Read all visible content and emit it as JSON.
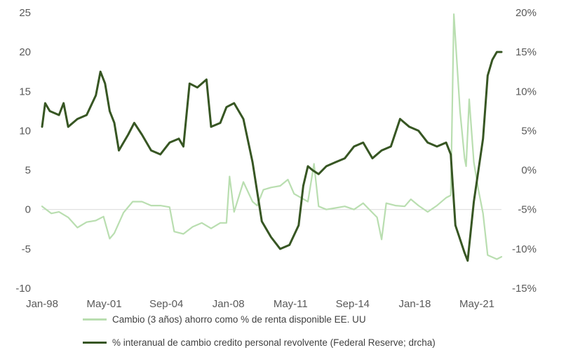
{
  "chart_data": {
    "type": "line",
    "x_tick_labels": [
      "Jan-98",
      "May-01",
      "Sep-04",
      "Jan-08",
      "May-11",
      "Sep-14",
      "Jan-18",
      "May-21"
    ],
    "y_left": {
      "ticks": [
        "25",
        "20",
        "15",
        "10",
        "5",
        "0",
        "-5",
        "-10"
      ],
      "range": [
        -10,
        25
      ]
    },
    "y_right": {
      "ticks": [
        "20%",
        "15%",
        "10%",
        "5%",
        "0%",
        "-5%",
        "-10%",
        "-15%"
      ],
      "range": [
        -15,
        20
      ]
    },
    "grid": false,
    "zero_line": true,
    "legend_position": "bottom",
    "series": [
      {
        "name": "Cambio (3 años) ahorro como % de renta disponible EE. UU",
        "axis": "left",
        "color": "#b9deb0",
        "points": [
          [
            "1998-01",
            0.4
          ],
          [
            "1998-07",
            -0.5
          ],
          [
            "1998-12",
            -0.3
          ],
          [
            "1999-06",
            -1.0
          ],
          [
            "1999-12",
            -2.3
          ],
          [
            "2000-06",
            -1.6
          ],
          [
            "2000-12",
            -1.4
          ],
          [
            "2001-05",
            -0.9
          ],
          [
            "2001-09",
            -3.7
          ],
          [
            "2001-12",
            -3.0
          ],
          [
            "2002-06",
            -0.4
          ],
          [
            "2002-12",
            1.0
          ],
          [
            "2003-06",
            1.0
          ],
          [
            "2003-12",
            0.5
          ],
          [
            "2004-06",
            0.5
          ],
          [
            "2004-12",
            0.3
          ],
          [
            "2005-03",
            -2.8
          ],
          [
            "2005-09",
            -3.1
          ],
          [
            "2006-03",
            -2.2
          ],
          [
            "2006-09",
            -1.7
          ],
          [
            "2007-03",
            -2.4
          ],
          [
            "2007-09",
            -1.7
          ],
          [
            "2008-01",
            -1.7
          ],
          [
            "2008-03",
            4.2
          ],
          [
            "2008-06",
            -0.3
          ],
          [
            "2008-12",
            3.5
          ],
          [
            "2009-06",
            1.0
          ],
          [
            "2009-09",
            0.5
          ],
          [
            "2010-01",
            2.5
          ],
          [
            "2010-06",
            2.8
          ],
          [
            "2010-12",
            3.0
          ],
          [
            "2011-05",
            3.8
          ],
          [
            "2011-09",
            2.0
          ],
          [
            "2012-06",
            1.0
          ],
          [
            "2012-10",
            5.8
          ],
          [
            "2013-01",
            0.4
          ],
          [
            "2013-06",
            0.0
          ],
          [
            "2013-12",
            0.2
          ],
          [
            "2014-06",
            0.4
          ],
          [
            "2014-12",
            0.0
          ],
          [
            "2015-06",
            0.8
          ],
          [
            "2015-09",
            0.2
          ],
          [
            "2016-03",
            -1.0
          ],
          [
            "2016-06",
            -3.8
          ],
          [
            "2016-09",
            0.8
          ],
          [
            "2017-03",
            0.5
          ],
          [
            "2017-09",
            0.4
          ],
          [
            "2018-01",
            1.3
          ],
          [
            "2018-06",
            0.5
          ],
          [
            "2018-12",
            -0.3
          ],
          [
            "2019-06",
            0.5
          ],
          [
            "2019-12",
            1.5
          ],
          [
            "2020-03",
            1.8
          ],
          [
            "2020-05",
            24.8
          ],
          [
            "2020-09",
            12.5
          ],
          [
            "2020-12",
            6.5
          ],
          [
            "2021-01",
            5.5
          ],
          [
            "2021-03",
            14.0
          ],
          [
            "2021-06",
            6.0
          ],
          [
            "2021-09",
            2.5
          ],
          [
            "2021-12",
            -0.5
          ],
          [
            "2022-03",
            -5.8
          ],
          [
            "2022-09",
            -6.3
          ],
          [
            "2022-12",
            -6.0
          ]
        ]
      },
      {
        "name": "% interanual de cambio credito personal revolvente (Federal Reserve; drcha)",
        "axis": "right",
        "color": "#375623",
        "points": [
          [
            "1998-01",
            5.5
          ],
          [
            "1998-03",
            8.5
          ],
          [
            "1998-06",
            7.5
          ],
          [
            "1998-12",
            7.0
          ],
          [
            "1999-03",
            8.5
          ],
          [
            "1999-06",
            5.5
          ],
          [
            "1999-12",
            6.5
          ],
          [
            "2000-06",
            7.0
          ],
          [
            "2000-12",
            9.5
          ],
          [
            "2001-03",
            12.5
          ],
          [
            "2001-06",
            11.0
          ],
          [
            "2001-09",
            7.5
          ],
          [
            "2001-12",
            6.0
          ],
          [
            "2002-03",
            2.5
          ],
          [
            "2002-09",
            4.5
          ],
          [
            "2003-01",
            6.0
          ],
          [
            "2003-06",
            4.5
          ],
          [
            "2003-12",
            2.5
          ],
          [
            "2004-06",
            2.0
          ],
          [
            "2004-12",
            3.5
          ],
          [
            "2005-06",
            4.0
          ],
          [
            "2005-09",
            3.0
          ],
          [
            "2006-01",
            11.0
          ],
          [
            "2006-06",
            10.5
          ],
          [
            "2006-12",
            11.5
          ],
          [
            "2007-03",
            5.5
          ],
          [
            "2007-09",
            6.0
          ],
          [
            "2008-01",
            8.0
          ],
          [
            "2008-06",
            8.5
          ],
          [
            "2008-12",
            6.5
          ],
          [
            "2009-06",
            1.0
          ],
          [
            "2009-12",
            -6.5
          ],
          [
            "2010-06",
            -8.5
          ],
          [
            "2010-12",
            -10.0
          ],
          [
            "2011-06",
            -9.5
          ],
          [
            "2011-12",
            -7.0
          ],
          [
            "2012-03",
            -2.0
          ],
          [
            "2012-06",
            0.5
          ],
          [
            "2012-09",
            0.0
          ],
          [
            "2013-01",
            -0.5
          ],
          [
            "2013-06",
            0.5
          ],
          [
            "2013-12",
            1.0
          ],
          [
            "2014-06",
            1.5
          ],
          [
            "2014-12",
            3.0
          ],
          [
            "2015-06",
            3.5
          ],
          [
            "2015-12",
            1.5
          ],
          [
            "2016-06",
            2.5
          ],
          [
            "2016-12",
            3.0
          ],
          [
            "2017-06",
            6.5
          ],
          [
            "2017-12",
            5.5
          ],
          [
            "2018-06",
            5.0
          ],
          [
            "2018-12",
            3.5
          ],
          [
            "2019-06",
            3.0
          ],
          [
            "2019-12",
            3.5
          ],
          [
            "2020-03",
            2.0
          ],
          [
            "2020-06",
            -7.0
          ],
          [
            "2020-12",
            -10.5
          ],
          [
            "2021-02",
            -11.5
          ],
          [
            "2021-06",
            -4.0
          ],
          [
            "2021-12",
            4.0
          ],
          [
            "2022-03",
            12.0
          ],
          [
            "2022-06",
            14.0
          ],
          [
            "2022-09",
            15.0
          ],
          [
            "2022-12",
            15.0
          ]
        ]
      }
    ]
  }
}
